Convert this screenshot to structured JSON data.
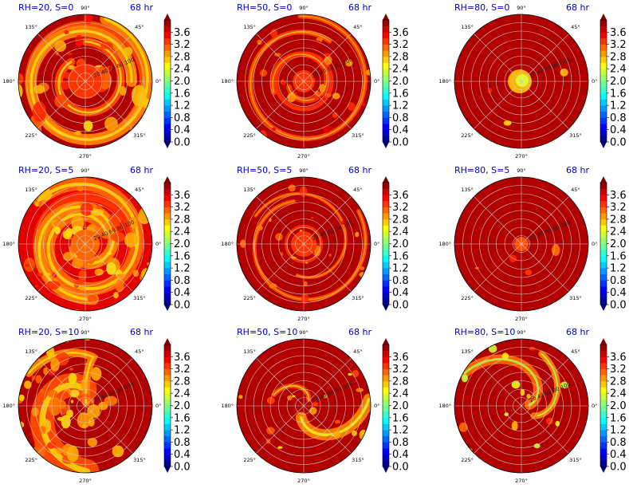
{
  "figure": {
    "type": "grid of polar filled-contour maps with colorbars",
    "rows": 3,
    "cols": 3
  },
  "chart_data": [
    {
      "type": "heatmap",
      "projection": "polar",
      "panel_label": "RH=20, S=0",
      "time_label": "68 hr",
      "angle_ticks": [
        "0°",
        "45°",
        "90°",
        "135°",
        "180°",
        "225°",
        "270°",
        "315°"
      ],
      "radial_ticks": [
        "20",
        "40",
        "60",
        "80",
        "100"
      ],
      "colorbar": {
        "ticks": [
          "0.0",
          "0.4",
          "0.8",
          "1.2",
          "1.6",
          "2.0",
          "2.4",
          "2.8",
          "3.2",
          "3.6"
        ],
        "vmin": 0.0,
        "vmax": 4.0,
        "extend": "both",
        "colormap": "jet"
      },
      "field": {
        "background_level": 3.8,
        "feature": "broad orange/yellow spiral bands",
        "feature_level_range": [
          2.6,
          3.6
        ]
      }
    },
    {
      "type": "heatmap",
      "projection": "polar",
      "panel_label": "RH=50, S=0",
      "time_label": "68 hr",
      "angle_ticks": [
        "0°",
        "45°",
        "90°",
        "135°",
        "180°",
        "225°",
        "270°",
        "315°"
      ],
      "radial_ticks": [
        "20",
        "40",
        "60",
        "80",
        "100"
      ],
      "colorbar": {
        "ticks": [
          "0.0",
          "0.4",
          "0.8",
          "1.2",
          "1.6",
          "2.0",
          "2.4",
          "2.8",
          "3.2",
          "3.6"
        ],
        "vmin": 0.0,
        "vmax": 4.0,
        "extend": "both",
        "colormap": "jet"
      },
      "field": {
        "background_level": 3.8,
        "feature": "thinner outer spiral bands and inner ring",
        "feature_level_range": [
          2.8,
          3.6
        ]
      }
    },
    {
      "type": "heatmap",
      "projection": "polar",
      "panel_label": "RH=80, S=0",
      "time_label": "68 hr",
      "angle_ticks": [
        "0°",
        "45°",
        "90°",
        "135°",
        "180°",
        "225°",
        "270°",
        "315°"
      ],
      "radial_ticks": [
        "20",
        "40",
        "60",
        "80",
        "100"
      ],
      "colorbar": {
        "ticks": [
          "0.0",
          "0.4",
          "0.8",
          "1.2",
          "1.6",
          "2.0",
          "2.4",
          "2.8",
          "3.2",
          "3.6"
        ],
        "vmin": 0.0,
        "vmax": 4.0,
        "extend": "both",
        "colormap": "jet"
      },
      "field": {
        "background_level": 3.8,
        "feature": "small core near center",
        "feature_level_range": [
          2.2,
          3.4
        ]
      }
    },
    {
      "type": "heatmap",
      "projection": "polar",
      "panel_label": "RH=20, S=5",
      "time_label": "68 hr",
      "angle_ticks": [
        "0°",
        "45°",
        "90°",
        "135°",
        "180°",
        "225°",
        "270°",
        "315°"
      ],
      "radial_ticks": [
        "20",
        "40",
        "60",
        "80",
        "100"
      ],
      "colorbar": {
        "ticks": [
          "0.0",
          "0.4",
          "0.8",
          "1.2",
          "1.6",
          "2.0",
          "2.4",
          "2.8",
          "3.2",
          "3.6"
        ],
        "vmin": 0.0,
        "vmax": 4.0,
        "extend": "both",
        "colormap": "jet"
      },
      "field": {
        "background_level": 3.6,
        "feature": "widespread orange field with embedded spirals",
        "feature_level_range": [
          2.6,
          3.4
        ]
      }
    },
    {
      "type": "heatmap",
      "projection": "polar",
      "panel_label": "RH=50, S=5",
      "time_label": "68 hr",
      "angle_ticks": [
        "0°",
        "45°",
        "90°",
        "135°",
        "180°",
        "225°",
        "270°",
        "315°"
      ],
      "radial_ticks": [
        "20",
        "40",
        "60",
        "80",
        "100"
      ],
      "colorbar": {
        "ticks": [
          "0.0",
          "0.4",
          "0.8",
          "1.2",
          "1.6",
          "2.0",
          "2.4",
          "2.8",
          "3.2",
          "3.6"
        ],
        "vmin": 0.0,
        "vmax": 4.0,
        "extend": "both",
        "colormap": "jet"
      },
      "field": {
        "background_level": 3.8,
        "feature": "inner ring and scattered outer bands",
        "feature_level_range": [
          2.8,
          3.6
        ]
      }
    },
    {
      "type": "heatmap",
      "projection": "polar",
      "panel_label": "RH=80, S=5",
      "time_label": "68 hr",
      "angle_ticks": [
        "0°",
        "45°",
        "90°",
        "135°",
        "180°",
        "225°",
        "270°",
        "315°"
      ],
      "radial_ticks": [
        "20",
        "40",
        "60",
        "80",
        "100"
      ],
      "colorbar": {
        "ticks": [
          "0.0",
          "0.4",
          "0.8",
          "1.2",
          "1.6",
          "2.0",
          "2.4",
          "2.8",
          "3.2",
          "3.6"
        ],
        "vmin": 0.0,
        "vmax": 4.0,
        "extend": "both",
        "colormap": "jet"
      },
      "field": {
        "background_level": 3.8,
        "feature": "small central core",
        "feature_level_range": [
          3.0,
          3.4
        ]
      }
    },
    {
      "type": "heatmap",
      "projection": "polar",
      "panel_label": "RH=20, S=10",
      "time_label": "68 hr",
      "angle_ticks": [
        "0°",
        "45°",
        "90°",
        "135°",
        "180°",
        "225°",
        "270°",
        "315°"
      ],
      "radial_ticks": [
        "20",
        "40",
        "60",
        "80",
        "100"
      ],
      "colorbar": {
        "ticks": [
          "0.0",
          "0.4",
          "0.8",
          "1.2",
          "1.6",
          "2.0",
          "2.4",
          "2.8",
          "3.2",
          "3.6"
        ],
        "vmin": 0.0,
        "vmax": 4.0,
        "extend": "both",
        "colormap": "jet"
      },
      "field": {
        "background_level": 3.8,
        "feature": "broad orange region on the left half",
        "feature_level_range": [
          2.6,
          3.4
        ]
      }
    },
    {
      "type": "heatmap",
      "projection": "polar",
      "panel_label": "RH=50, S=10",
      "time_label": "68 hr",
      "angle_ticks": [
        "0°",
        "45°",
        "90°",
        "135°",
        "180°",
        "225°",
        "270°",
        "315°"
      ],
      "radial_ticks": [
        "20",
        "40",
        "60",
        "80",
        "100"
      ],
      "colorbar": {
        "ticks": [
          "0.0",
          "0.4",
          "0.8",
          "1.2",
          "1.6",
          "2.0",
          "2.4",
          "2.8",
          "3.2",
          "3.6"
        ],
        "vmin": 0.0,
        "vmax": 4.0,
        "extend": "both",
        "colormap": "jet"
      },
      "field": {
        "background_level": 3.8,
        "feature": "band toward the bottom (270°)",
        "feature_level_range": [
          2.4,
          3.4
        ]
      }
    },
    {
      "type": "heatmap",
      "projection": "polar",
      "panel_label": "RH=80, S=10",
      "time_label": "68 hr",
      "angle_ticks": [
        "0°",
        "45°",
        "90°",
        "135°",
        "180°",
        "225°",
        "270°",
        "315°"
      ],
      "radial_ticks": [
        "20",
        "40",
        "60",
        "80",
        "100"
      ],
      "colorbar": {
        "ticks": [
          "0.0",
          "0.4",
          "0.8",
          "1.2",
          "1.6",
          "2.0",
          "2.4",
          "2.8",
          "3.2",
          "3.6"
        ],
        "vmin": 0.0,
        "vmax": 4.0,
        "extend": "both",
        "colormap": "jet"
      },
      "field": {
        "background_level": 3.8,
        "feature": "band on the right toward 45°",
        "feature_level_range": [
          2.2,
          3.4
        ]
      }
    }
  ],
  "colors": {
    "background_fill": "#800000",
    "label_blue": "#0000c8",
    "grid": "#c8c8c8",
    "jet_stops": [
      "#00007f",
      "#0000ff",
      "#007fff",
      "#00ffff",
      "#7fff7f",
      "#ffff00",
      "#ff7f00",
      "#ff0000",
      "#7f0000"
    ]
  }
}
